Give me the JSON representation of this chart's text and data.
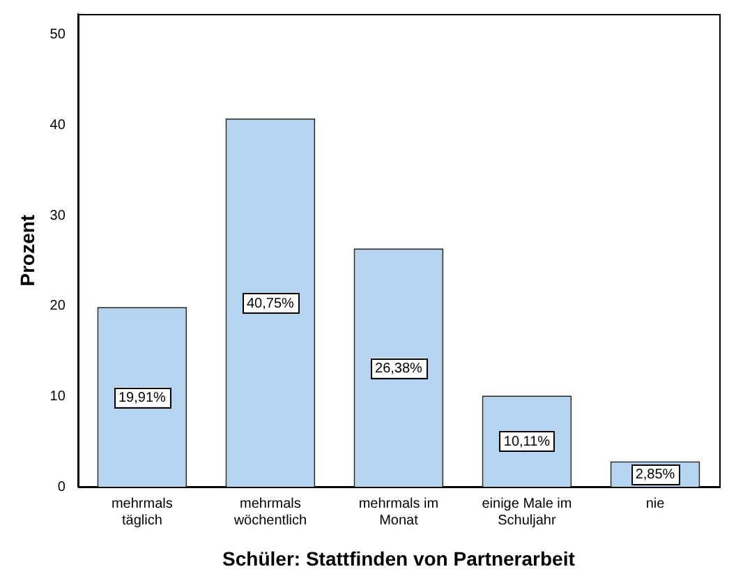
{
  "chart_data": {
    "type": "bar",
    "xlabel": "Schüler: Stattfinden von Partnerarbeit",
    "ylabel": "Prozent",
    "categories": [
      "mehrmals täglich",
      "mehrmals wöchentlich",
      "mehrmals im Monat",
      "einige Male im Schuljahr",
      "nie"
    ],
    "values": [
      19.91,
      40.75,
      26.38,
      10.11,
      2.85
    ],
    "value_labels": [
      "19,91%",
      "40,75%",
      "26,38%",
      "10,11%",
      "2,85%"
    ],
    "color": "#b4d4ef",
    "ylim": [
      0,
      52.3
    ],
    "yticks": [
      0,
      10,
      20,
      30,
      40,
      50
    ],
    "grid": false,
    "legend": false
  }
}
